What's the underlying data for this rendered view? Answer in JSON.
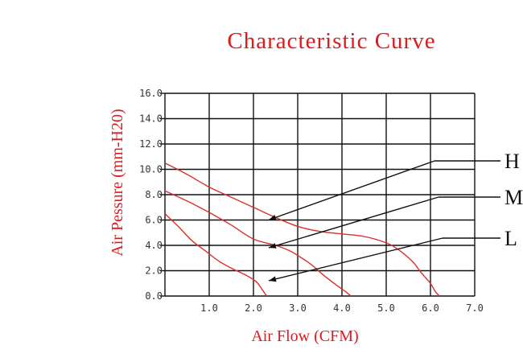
{
  "chart_data": {
    "type": "line",
    "title": "Characteristic Curve",
    "xlabel": "Air Flow (CFM)",
    "ylabel": "Air Pessure (mm-H20)",
    "xlim": [
      0,
      7
    ],
    "ylim": [
      0,
      16
    ],
    "x_ticks": [
      "1.0",
      "2.0",
      "3.0",
      "4.0",
      "5.0",
      "6.0",
      "7.0"
    ],
    "y_ticks": [
      "0.0",
      "2.0",
      "4.0",
      "6.0",
      "8.0",
      "10.0",
      "12.0",
      "14.0",
      "16.0"
    ],
    "grid": true,
    "series": [
      {
        "name": "H",
        "x": [
          0.0,
          0.5,
          1.0,
          1.5,
          2.0,
          2.5,
          3.0,
          3.5,
          4.0,
          4.5,
          5.0,
          5.3,
          5.6,
          5.8,
          6.0,
          6.1,
          6.2
        ],
        "y": [
          10.5,
          9.6,
          8.6,
          7.8,
          7.0,
          6.2,
          5.5,
          5.1,
          4.9,
          4.7,
          4.2,
          3.6,
          2.7,
          1.8,
          1.0,
          0.4,
          0.0
        ]
      },
      {
        "name": "M",
        "x": [
          0.0,
          0.5,
          1.0,
          1.5,
          2.0,
          2.5,
          2.8,
          3.0,
          3.3,
          3.6,
          3.9,
          4.1,
          4.2
        ],
        "y": [
          8.3,
          7.5,
          6.6,
          5.6,
          4.5,
          4.0,
          3.6,
          3.2,
          2.5,
          1.6,
          0.8,
          0.3,
          0.0
        ]
      },
      {
        "name": "L",
        "x": [
          0.0,
          0.3,
          0.6,
          0.9,
          1.2,
          1.5,
          1.8,
          2.0,
          2.1,
          2.2,
          2.3
        ],
        "y": [
          6.5,
          5.5,
          4.4,
          3.6,
          2.8,
          2.2,
          1.7,
          1.3,
          1.0,
          0.5,
          0.0
        ]
      }
    ],
    "annotations": [
      {
        "label": "H",
        "arrow_to": {
          "series": "H",
          "x": 2.4,
          "y": 6.2
        }
      },
      {
        "label": "M",
        "arrow_to": {
          "series": "M",
          "x": 2.4,
          "y": 4.0
        }
      },
      {
        "label": "L",
        "arrow_to": {
          "series": "L",
          "x": 2.4,
          "y": 1.4
        }
      }
    ]
  }
}
